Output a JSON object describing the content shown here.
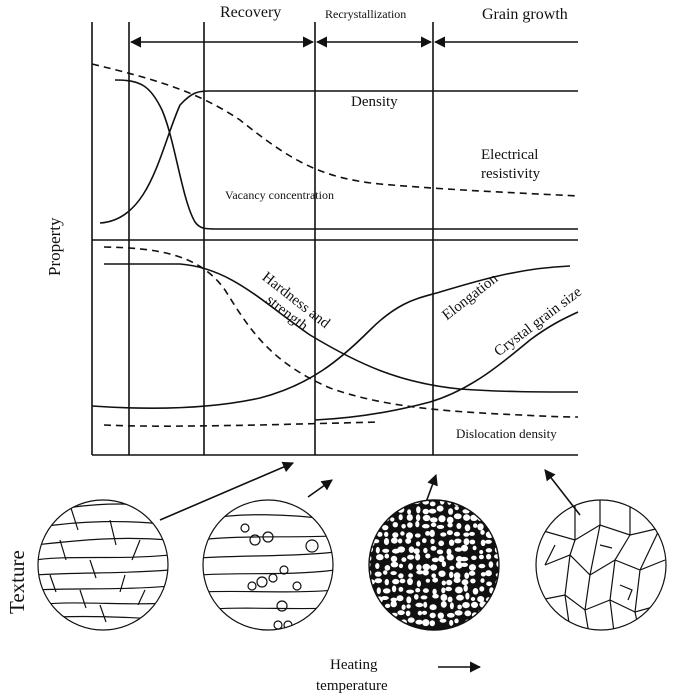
{
  "stages": {
    "recovery": "Recovery",
    "recrystallization": "Recrystallization",
    "grain_growth": "Grain growth"
  },
  "axes": {
    "y_label": "Property",
    "x_label_line1": "Heating",
    "x_label_line2": "temperature"
  },
  "curves": {
    "density": "Density",
    "electrical_resistivity_line1": "Electrical",
    "electrical_resistivity_line2": "resistivity",
    "vacancy_concentration": "Vacancy concentration",
    "hardness_line1": "Hardness and",
    "hardness_line2": "strength",
    "elongation": "Elongation",
    "crystal_grain_size": "Crystal grain size",
    "dislocation_density": "Dislocation density"
  },
  "texture_label": "Texture"
}
